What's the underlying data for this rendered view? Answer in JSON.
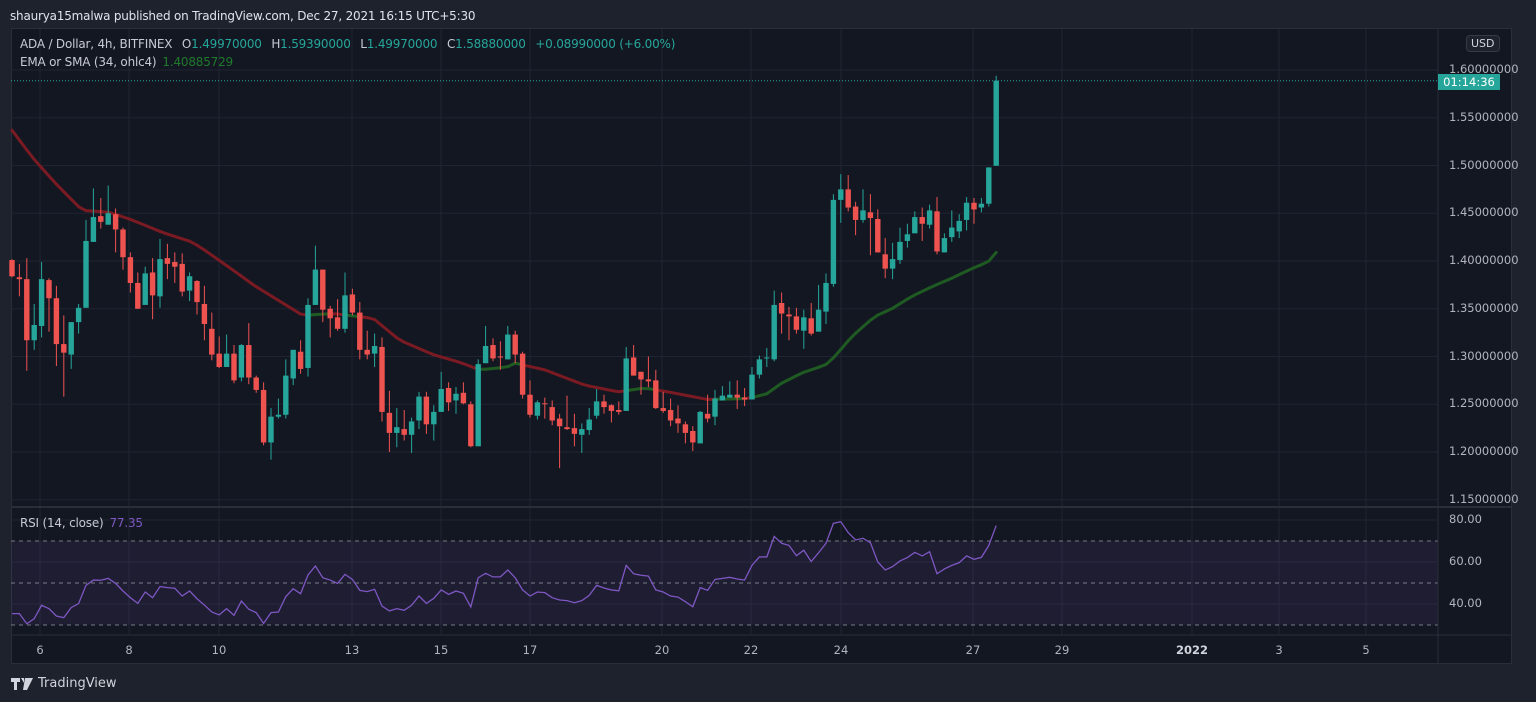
{
  "header": {
    "published": "shaurya15malwa published on TradingView.com, Dec 27, 2021 16:15 UTC+5:30"
  },
  "legend": {
    "symbol": "ADA / Dollar, 4h, BITFINEX",
    "open_label": "O",
    "open": "1.49970000",
    "high_label": "H",
    "high": "1.59390000",
    "low_label": "L",
    "low": "1.49970000",
    "close_label": "C",
    "close": "1.58880000",
    "change": "+0.08990000 (+6.00%)",
    "ema_label": "EMA or SMA (34, ohlc4)",
    "ema_value": "1.40885729",
    "rsi_label": "RSI (14, close)",
    "rsi_value": "77.35"
  },
  "price_axis": {
    "currency": "USD",
    "ticks": [
      "1.60000000",
      "1.55000000",
      "1.50000000",
      "1.45000000",
      "1.40000000",
      "1.35000000",
      "1.30000000",
      "1.25000000",
      "1.20000000",
      "1.15000000"
    ],
    "countdown": "01:14:36",
    "last_price": 1.5888
  },
  "rsi_axis": {
    "ticks": [
      "80.00",
      "60.00",
      "40.00"
    ],
    "bands": [
      70,
      50,
      30
    ]
  },
  "time_axis": {
    "ticks": [
      "6",
      "8",
      "10",
      "13",
      "15",
      "17",
      "20",
      "22",
      "24",
      "27",
      "29",
      "2022",
      "3",
      "5"
    ]
  },
  "brand": "TradingView",
  "colors": {
    "up": "#26a69a",
    "down": "#ef5350",
    "ema_up": "#1e5a22",
    "ema_down": "#7a1a22",
    "rsi": "#7e57c2",
    "background": "#131722"
  },
  "chart_data": {
    "type": "candlestick",
    "ylim": [
      1.15,
      1.6
    ],
    "candles_ohlc": [
      [
        1.401,
        1.402,
        1.383,
        1.384
      ],
      [
        1.383,
        1.397,
        1.363,
        1.381
      ],
      [
        1.381,
        1.403,
        1.285,
        1.317
      ],
      [
        1.317,
        1.355,
        1.307,
        1.333
      ],
      [
        1.332,
        1.399,
        1.32,
        1.381
      ],
      [
        1.38,
        1.382,
        1.326,
        1.361
      ],
      [
        1.361,
        1.374,
        1.29,
        1.313
      ],
      [
        1.313,
        1.343,
        1.258,
        1.304
      ],
      [
        1.302,
        1.336,
        1.287,
        1.336
      ],
      [
        1.336,
        1.355,
        1.324,
        1.351
      ],
      [
        1.351,
        1.443,
        1.351,
        1.421
      ],
      [
        1.42,
        1.476,
        1.42,
        1.446
      ],
      [
        1.447,
        1.466,
        1.434,
        1.441
      ],
      [
        1.438,
        1.479,
        1.438,
        1.45
      ],
      [
        1.449,
        1.455,
        1.409,
        1.433
      ],
      [
        1.433,
        1.435,
        1.391,
        1.404
      ],
      [
        1.404,
        1.409,
        1.367,
        1.377
      ],
      [
        1.377,
        1.388,
        1.35,
        1.35
      ],
      [
        1.354,
        1.394,
        1.354,
        1.387
      ],
      [
        1.388,
        1.403,
        1.339,
        1.364
      ],
      [
        1.363,
        1.423,
        1.351,
        1.402
      ],
      [
        1.403,
        1.418,
        1.381,
        1.397
      ],
      [
        1.399,
        1.409,
        1.377,
        1.394
      ],
      [
        1.397,
        1.408,
        1.363,
        1.368
      ],
      [
        1.369,
        1.388,
        1.358,
        1.384
      ],
      [
        1.379,
        1.38,
        1.344,
        1.357
      ],
      [
        1.355,
        1.374,
        1.317,
        1.334
      ],
      [
        1.329,
        1.346,
        1.296,
        1.302
      ],
      [
        1.303,
        1.321,
        1.288,
        1.289
      ],
      [
        1.289,
        1.323,
        1.289,
        1.303
      ],
      [
        1.303,
        1.312,
        1.272,
        1.275
      ],
      [
        1.278,
        1.313,
        1.274,
        1.312
      ],
      [
        1.312,
        1.335,
        1.271,
        1.278
      ],
      [
        1.278,
        1.28,
        1.262,
        1.265
      ],
      [
        1.265,
        1.273,
        1.207,
        1.21
      ],
      [
        1.21,
        1.246,
        1.192,
        1.237
      ],
      [
        1.237,
        1.256,
        1.235,
        1.239
      ],
      [
        1.239,
        1.297,
        1.235,
        1.28
      ],
      [
        1.277,
        1.307,
        1.27,
        1.307
      ],
      [
        1.305,
        1.317,
        1.282,
        1.287
      ],
      [
        1.288,
        1.361,
        1.279,
        1.354
      ],
      [
        1.354,
        1.416,
        1.354,
        1.391
      ],
      [
        1.391,
        1.391,
        1.336,
        1.349
      ],
      [
        1.35,
        1.353,
        1.32,
        1.34
      ],
      [
        1.341,
        1.36,
        1.327,
        1.329
      ],
      [
        1.329,
        1.388,
        1.325,
        1.364
      ],
      [
        1.365,
        1.371,
        1.343,
        1.346
      ],
      [
        1.346,
        1.357,
        1.297,
        1.307
      ],
      [
        1.307,
        1.327,
        1.297,
        1.302
      ],
      [
        1.303,
        1.324,
        1.289,
        1.311
      ],
      [
        1.31,
        1.32,
        1.232,
        1.242
      ],
      [
        1.241,
        1.264,
        1.2,
        1.22
      ],
      [
        1.22,
        1.246,
        1.205,
        1.226
      ],
      [
        1.224,
        1.244,
        1.212,
        1.218
      ],
      [
        1.218,
        1.236,
        1.199,
        1.232
      ],
      [
        1.233,
        1.263,
        1.224,
        1.258
      ],
      [
        1.258,
        1.263,
        1.219,
        1.229
      ],
      [
        1.229,
        1.249,
        1.212,
        1.242
      ],
      [
        1.242,
        1.284,
        1.242,
        1.266
      ],
      [
        1.267,
        1.273,
        1.243,
        1.252
      ],
      [
        1.254,
        1.268,
        1.24,
        1.261
      ],
      [
        1.262,
        1.273,
        1.25,
        1.251
      ],
      [
        1.25,
        1.253,
        1.205,
        1.206
      ],
      [
        1.206,
        1.297,
        1.206,
        1.292
      ],
      [
        1.293,
        1.332,
        1.293,
        1.311
      ],
      [
        1.312,
        1.319,
        1.295,
        1.298
      ],
      [
        1.3,
        1.316,
        1.286,
        1.299
      ],
      [
        1.297,
        1.332,
        1.297,
        1.323
      ],
      [
        1.323,
        1.327,
        1.293,
        1.302
      ],
      [
        1.303,
        1.305,
        1.256,
        1.26
      ],
      [
        1.26,
        1.275,
        1.236,
        1.239
      ],
      [
        1.238,
        1.254,
        1.234,
        1.252
      ],
      [
        1.251,
        1.257,
        1.235,
        1.25
      ],
      [
        1.247,
        1.254,
        1.228,
        1.233
      ],
      [
        1.235,
        1.24,
        1.183,
        1.227
      ],
      [
        1.226,
        1.259,
        1.223,
        1.224
      ],
      [
        1.225,
        1.24,
        1.206,
        1.219
      ],
      [
        1.218,
        1.23,
        1.199,
        1.224
      ],
      [
        1.223,
        1.246,
        1.218,
        1.234
      ],
      [
        1.238,
        1.266,
        1.235,
        1.253
      ],
      [
        1.253,
        1.26,
        1.24,
        1.247
      ],
      [
        1.249,
        1.25,
        1.231,
        1.243
      ],
      [
        1.244,
        1.253,
        1.239,
        1.242
      ],
      [
        1.243,
        1.31,
        1.243,
        1.298
      ],
      [
        1.299,
        1.312,
        1.28,
        1.28
      ],
      [
        1.284,
        1.284,
        1.26,
        1.276
      ],
      [
        1.276,
        1.3,
        1.268,
        1.274
      ],
      [
        1.275,
        1.286,
        1.245,
        1.246
      ],
      [
        1.246,
        1.263,
        1.241,
        1.243
      ],
      [
        1.244,
        1.256,
        1.227,
        1.233
      ],
      [
        1.235,
        1.249,
        1.22,
        1.23
      ],
      [
        1.229,
        1.232,
        1.209,
        1.22
      ],
      [
        1.222,
        1.227,
        1.201,
        1.21
      ],
      [
        1.209,
        1.243,
        1.209,
        1.242
      ],
      [
        1.24,
        1.26,
        1.231,
        1.235
      ],
      [
        1.237,
        1.265,
        1.228,
        1.256
      ],
      [
        1.254,
        1.269,
        1.254,
        1.259
      ],
      [
        1.257,
        1.274,
        1.257,
        1.26
      ],
      [
        1.26,
        1.275,
        1.245,
        1.257
      ],
      [
        1.257,
        1.267,
        1.248,
        1.255
      ],
      [
        1.255,
        1.289,
        1.255,
        1.281
      ],
      [
        1.281,
        1.301,
        1.277,
        1.297
      ],
      [
        1.298,
        1.309,
        1.289,
        1.299
      ],
      [
        1.297,
        1.369,
        1.295,
        1.354
      ],
      [
        1.356,
        1.367,
        1.324,
        1.345
      ],
      [
        1.344,
        1.352,
        1.317,
        1.342
      ],
      [
        1.342,
        1.351,
        1.324,
        1.328
      ],
      [
        1.327,
        1.349,
        1.308,
        1.341
      ],
      [
        1.34,
        1.356,
        1.322,
        1.324
      ],
      [
        1.326,
        1.375,
        1.326,
        1.349
      ],
      [
        1.347,
        1.387,
        1.334,
        1.377
      ],
      [
        1.376,
        1.47,
        1.373,
        1.464
      ],
      [
        1.464,
        1.491,
        1.44,
        1.475
      ],
      [
        1.475,
        1.49,
        1.452,
        1.456
      ],
      [
        1.457,
        1.462,
        1.427,
        1.443
      ],
      [
        1.443,
        1.475,
        1.44,
        1.453
      ],
      [
        1.451,
        1.47,
        1.406,
        1.445
      ],
      [
        1.444,
        1.454,
        1.409,
        1.409
      ],
      [
        1.407,
        1.424,
        1.382,
        1.392
      ],
      [
        1.392,
        1.419,
        1.381,
        1.402
      ],
      [
        1.401,
        1.435,
        1.397,
        1.42
      ],
      [
        1.421,
        1.439,
        1.414,
        1.428
      ],
      [
        1.429,
        1.452,
        1.429,
        1.446
      ],
      [
        1.446,
        1.456,
        1.421,
        1.439
      ],
      [
        1.438,
        1.459,
        1.434,
        1.453
      ],
      [
        1.452,
        1.467,
        1.407,
        1.41
      ],
      [
        1.409,
        1.429,
        1.409,
        1.424
      ],
      [
        1.425,
        1.453,
        1.42,
        1.435
      ],
      [
        1.431,
        1.449,
        1.424,
        1.442
      ],
      [
        1.443,
        1.467,
        1.432,
        1.461
      ],
      [
        1.461,
        1.466,
        1.439,
        1.454
      ],
      [
        1.456,
        1.466,
        1.451,
        1.46
      ],
      [
        1.46,
        1.498,
        1.457,
        1.498
      ],
      [
        1.4997,
        1.5939,
        1.4997,
        1.5888
      ]
    ],
    "ema_points": [
      [
        0,
        1.537
      ],
      [
        2.7,
        1.509
      ],
      [
        5.8,
        1.482
      ],
      [
        9.5,
        1.453
      ],
      [
        13.2,
        1.451
      ],
      [
        16.2,
        1.443
      ],
      [
        20.3,
        1.43
      ],
      [
        24.3,
        1.42
      ],
      [
        26.1,
        1.411
      ],
      [
        30.5,
        1.387
      ],
      [
        32.6,
        1.375
      ],
      [
        39.3,
        1.343
      ],
      [
        43.4,
        1.345
      ],
      [
        48.8,
        1.34
      ],
      [
        52.4,
        1.317
      ],
      [
        56.9,
        1.302
      ],
      [
        60.5,
        1.294
      ],
      [
        63.2,
        1.286
      ],
      [
        66.9,
        1.289
      ],
      [
        68,
        1.293
      ],
      [
        72,
        1.286
      ],
      [
        77.4,
        1.27
      ],
      [
        81.9,
        1.263
      ],
      [
        85.5,
        1.267
      ],
      [
        88.6,
        1.263
      ],
      [
        94,
        1.255
      ],
      [
        99.5,
        1.256
      ],
      [
        102,
        1.261
      ],
      [
        104,
        1.272
      ],
      [
        106.8,
        1.283
      ],
      [
        109.9,
        1.291
      ],
      [
        111.2,
        1.3
      ],
      [
        113.5,
        1.321
      ],
      [
        116.6,
        1.342
      ],
      [
        118.9,
        1.35
      ],
      [
        121.6,
        1.363
      ],
      [
        124.3,
        1.373
      ],
      [
        127,
        1.382
      ],
      [
        129.7,
        1.392
      ],
      [
        131.9,
        1.399
      ],
      [
        133,
        1.409
      ]
    ],
    "rsi": [
      35.4,
      35.4,
      30.6,
      33.0,
      39.4,
      37.8,
      34.3,
      33.5,
      38.3,
      40.2,
      48.9,
      51.4,
      51.3,
      52.2,
      49.8,
      46.2,
      43.0,
      40.3,
      45.7,
      43.0,
      48.3,
      47.8,
      47.5,
      43.8,
      46.2,
      42.5,
      39.5,
      36.2,
      34.8,
      37.8,
      34.6,
      41.4,
      37.5,
      35.9,
      30.8,
      35.9,
      36.2,
      43.5,
      47.3,
      44.9,
      53.8,
      58.1,
      52.5,
      51.4,
      49.8,
      54.1,
      51.7,
      46.5,
      45.9,
      47.0,
      39.0,
      36.7,
      37.8,
      37.0,
      39.4,
      43.8,
      40.3,
      42.7,
      46.7,
      44.6,
      46.2,
      45.1,
      38.6,
      52.5,
      54.6,
      52.9,
      52.9,
      56.2,
      52.5,
      46.7,
      43.8,
      45.7,
      45.4,
      43.0,
      41.9,
      41.6,
      40.6,
      41.6,
      44.1,
      48.9,
      47.6,
      46.7,
      46.3,
      58.4,
      54.4,
      53.7,
      53.3,
      46.7,
      45.7,
      43.8,
      43.3,
      41.1,
      38.7,
      47.8,
      46.5,
      51.7,
      52.2,
      52.7,
      51.9,
      51.4,
      58.4,
      62.4,
      62.4,
      72.2,
      68.9,
      67.9,
      63.0,
      65.6,
      60.2,
      64.4,
      68.9,
      78.4,
      79.2,
      74.0,
      70.5,
      71.3,
      69.2,
      60.0,
      56.2,
      57.8,
      60.5,
      62.1,
      64.6,
      62.9,
      64.9,
      54.4,
      56.7,
      58.4,
      59.7,
      62.9,
      61.3,
      62.2,
      67.9,
      77.35
    ],
    "rsi_ylim": [
      22,
      86
    ]
  }
}
